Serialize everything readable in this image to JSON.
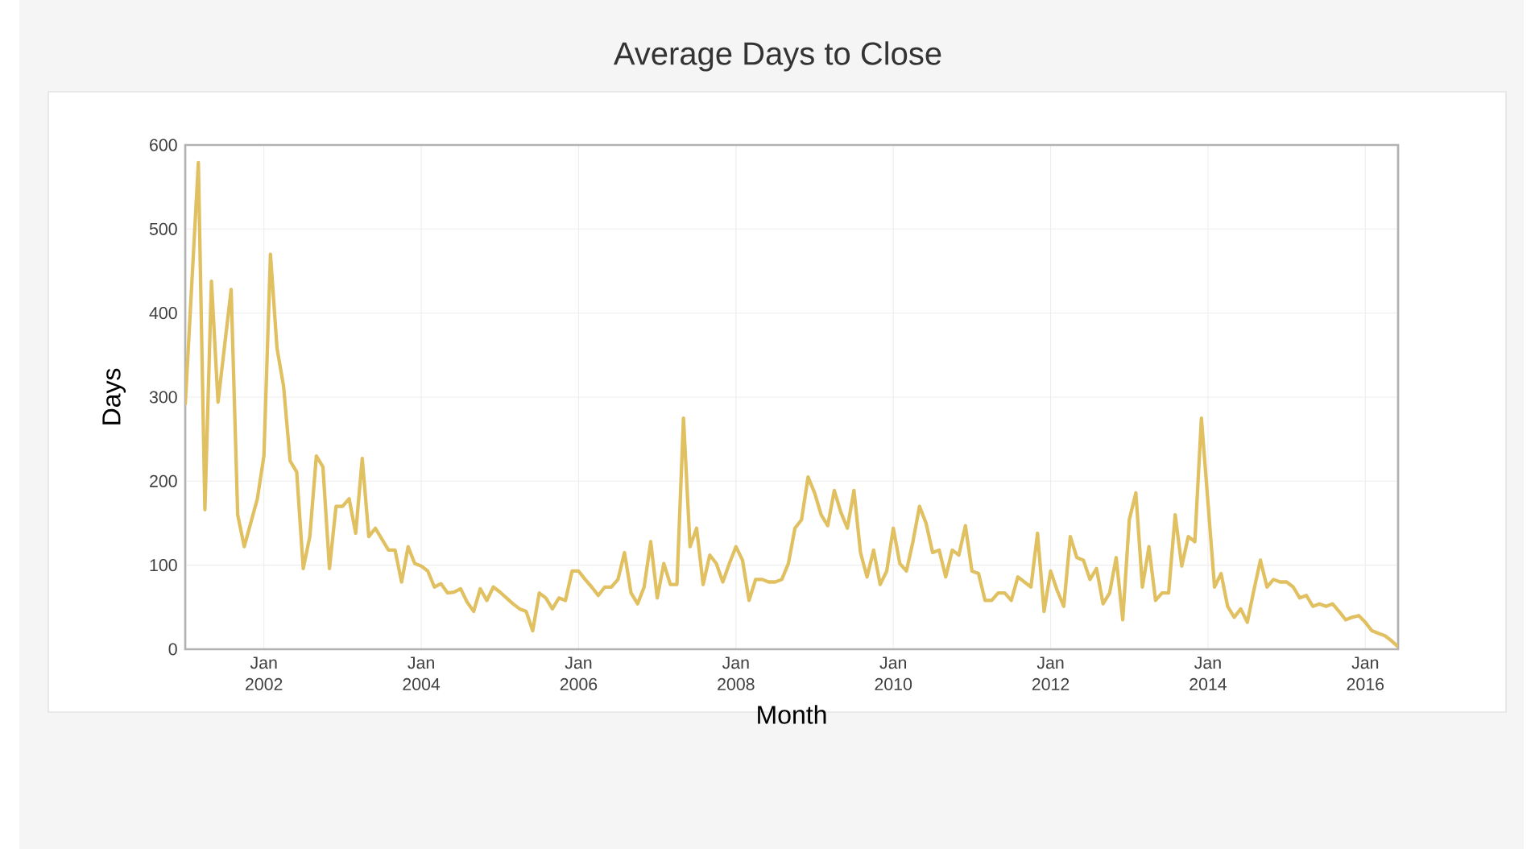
{
  "chart_data": {
    "type": "line",
    "title": "Average Days to Close",
    "xlabel": "Month",
    "ylabel": "Days",
    "x": [
      "2001-01",
      "2001-03",
      "2001-04",
      "2001-05",
      "2001-06",
      "2001-08",
      "2001-09",
      "2001-10",
      "2001-12",
      "2002-01",
      "2002-02",
      "2002-03",
      "2002-04",
      "2002-05",
      "2002-06",
      "2002-07",
      "2002-08",
      "2002-09",
      "2002-10",
      "2002-11",
      "2002-12",
      "2003-01",
      "2003-02",
      "2003-03",
      "2003-04",
      "2003-05",
      "2003-06",
      "2003-07",
      "2003-08",
      "2003-09",
      "2003-10",
      "2003-11",
      "2003-12",
      "2004-01",
      "2004-02",
      "2004-03",
      "2004-04",
      "2004-05",
      "2004-06",
      "2004-07",
      "2004-08",
      "2004-09",
      "2004-10",
      "2004-11",
      "2004-12",
      "2005-01",
      "2005-02",
      "2005-03",
      "2005-04",
      "2005-05",
      "2005-06",
      "2005-07",
      "2005-08",
      "2005-09",
      "2005-10",
      "2005-11",
      "2005-12",
      "2006-01",
      "2006-02",
      "2006-03",
      "2006-04",
      "2006-05",
      "2006-06",
      "2006-07",
      "2006-08",
      "2006-09",
      "2006-10",
      "2006-11",
      "2006-12",
      "2007-01",
      "2007-02",
      "2007-03",
      "2007-04",
      "2007-05",
      "2007-06",
      "2007-07",
      "2007-08",
      "2007-09",
      "2007-10",
      "2007-11",
      "2007-12",
      "2008-01",
      "2008-02",
      "2008-03",
      "2008-04",
      "2008-05",
      "2008-06",
      "2008-07",
      "2008-08",
      "2008-09",
      "2008-10",
      "2008-11",
      "2008-12",
      "2009-01",
      "2009-02",
      "2009-03",
      "2009-04",
      "2009-05",
      "2009-06",
      "2009-07",
      "2009-08",
      "2009-09",
      "2009-10",
      "2009-11",
      "2009-12",
      "2010-01",
      "2010-02",
      "2010-03",
      "2010-04",
      "2010-05",
      "2010-06",
      "2010-07",
      "2010-08",
      "2010-09",
      "2010-10",
      "2010-11",
      "2010-12",
      "2011-01",
      "2011-02",
      "2011-03",
      "2011-04",
      "2011-05",
      "2011-06",
      "2011-07",
      "2011-08",
      "2011-09",
      "2011-10",
      "2011-11",
      "2011-12",
      "2012-01",
      "2012-02",
      "2012-03",
      "2012-04",
      "2012-05",
      "2012-06",
      "2012-07",
      "2012-08",
      "2012-09",
      "2012-10",
      "2012-11",
      "2012-12",
      "2013-01",
      "2013-02",
      "2013-03",
      "2013-04",
      "2013-05",
      "2013-06",
      "2013-07",
      "2013-08",
      "2013-09",
      "2013-10",
      "2013-11",
      "2013-12",
      "2014-02",
      "2014-03",
      "2014-04",
      "2014-05",
      "2014-06",
      "2014-07",
      "2014-08",
      "2014-09",
      "2014-10",
      "2014-11",
      "2014-12",
      "2015-01",
      "2015-02",
      "2015-03",
      "2015-04",
      "2015-05",
      "2015-06",
      "2015-07",
      "2015-08",
      "2015-09",
      "2015-10",
      "2015-11",
      "2015-12",
      "2016-01",
      "2016-02",
      "2016-03",
      "2016-04",
      "2016-05",
      "2016-06"
    ],
    "series": [
      {
        "color": "#e0c060",
        "values": [
          291,
          579,
          166,
          438,
          294,
          428,
          160,
          122,
          179,
          230,
          470,
          358,
          313,
          224,
          211,
          96,
          134,
          230,
          217,
          96,
          170,
          170,
          179,
          138,
          227,
          134,
          144,
          131,
          118,
          118,
          80,
          122,
          102,
          99,
          93,
          74,
          78,
          67,
          68,
          72,
          56,
          45,
          72,
          58,
          74,
          68,
          61,
          54,
          48,
          45,
          22,
          67,
          61,
          48,
          61,
          58,
          93,
          93,
          83,
          74,
          64,
          74,
          74,
          83,
          115,
          67,
          54,
          74,
          128,
          61,
          102,
          77,
          77,
          275,
          122,
          144,
          77,
          112,
          102,
          80,
          102,
          122,
          106,
          58,
          83,
          83,
          80,
          80,
          83,
          102,
          144,
          154,
          205,
          186,
          160,
          147,
          189,
          163,
          144,
          189,
          115,
          86,
          118,
          77,
          93,
          144,
          102,
          93,
          128,
          170,
          150,
          115,
          118,
          86,
          118,
          112,
          147,
          93,
          90,
          58,
          58,
          67,
          67,
          58,
          86,
          80,
          74,
          138,
          45,
          93,
          70,
          51,
          134,
          109,
          106,
          83,
          96,
          54,
          67,
          109,
          35,
          154,
          186,
          74,
          122,
          58,
          67,
          67,
          160,
          99,
          134,
          128,
          275,
          74,
          90,
          51,
          38,
          48,
          32,
          70,
          106,
          74,
          83,
          80,
          80,
          74,
          61,
          64,
          51,
          54,
          51,
          54,
          45,
          35,
          38,
          40,
          32,
          22,
          19,
          16,
          10,
          3
        ]
      }
    ],
    "xlim": [
      "2001-01",
      "2016-06"
    ],
    "ylim": [
      0,
      600
    ],
    "yticks": [
      0,
      100,
      200,
      300,
      400,
      500,
      600
    ],
    "xticks": [
      {
        "value": "2002-01",
        "label": "Jan 2002"
      },
      {
        "value": "2004-01",
        "label": "Jan 2004"
      },
      {
        "value": "2006-01",
        "label": "Jan 2006"
      },
      {
        "value": "2008-01",
        "label": "Jan 2008"
      },
      {
        "value": "2010-01",
        "label": "Jan 2010"
      },
      {
        "value": "2012-01",
        "label": "Jan 2012"
      },
      {
        "value": "2014-01",
        "label": "Jan 2014"
      },
      {
        "value": "2016-01",
        "label": "Jan 2016"
      }
    ],
    "grid": true,
    "legend": false,
    "marker": "none",
    "line_style": "solid"
  }
}
